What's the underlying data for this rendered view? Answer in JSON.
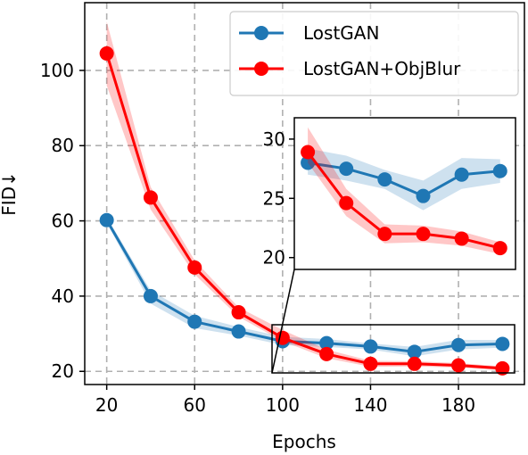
{
  "chart_data": {
    "type": "line",
    "title": "",
    "xlabel": "Epochs",
    "ylabel": "FID↓",
    "x": [
      20,
      40,
      60,
      80,
      100,
      120,
      140,
      160,
      180,
      200
    ],
    "xlim": [
      10,
      210
    ],
    "ylim": [
      16.5,
      118
    ],
    "xticks": [
      "20",
      "60",
      "100",
      "140",
      "180"
    ],
    "yticks": [
      "20",
      "40",
      "60",
      "80",
      "100"
    ],
    "grid": true,
    "legend_position": "top-right",
    "series": [
      {
        "name": "LostGAN",
        "color": "#1f77b4",
        "values": [
          60.2,
          40.0,
          33.2,
          30.6,
          28.0,
          27.5,
          26.6,
          25.2,
          27.0,
          27.3
        ],
        "band_low": [
          59.5,
          38.0,
          31.5,
          29.5,
          27.0,
          26.5,
          25.8,
          24.0,
          25.8,
          26.3
        ],
        "band_high": [
          61.0,
          41.5,
          34.8,
          31.8,
          29.2,
          28.6,
          27.4,
          26.5,
          28.4,
          28.3
        ]
      },
      {
        "name": "LostGAN+ObjBlur",
        "color": "#ff0000",
        "values": [
          104.5,
          66.2,
          47.6,
          35.7,
          28.9,
          24.6,
          22.0,
          22.0,
          21.6,
          20.8
        ],
        "band_low": [
          96.0,
          63.0,
          45.8,
          34.5,
          28.0,
          23.5,
          21.2,
          21.3,
          21.0,
          20.3
        ],
        "band_high": [
          113.0,
          69.0,
          49.5,
          37.0,
          31.0,
          25.8,
          22.8,
          22.7,
          22.2,
          21.3
        ]
      }
    ],
    "inset": {
      "xlim": [
        93,
        208
      ],
      "ylim": [
        19,
        31.8
      ],
      "yticks": [
        "20",
        "25",
        "30"
      ],
      "zoom_region_x": [
        95,
        205
      ],
      "zoom_region_y": [
        19.5,
        32
      ],
      "grid": false
    }
  }
}
